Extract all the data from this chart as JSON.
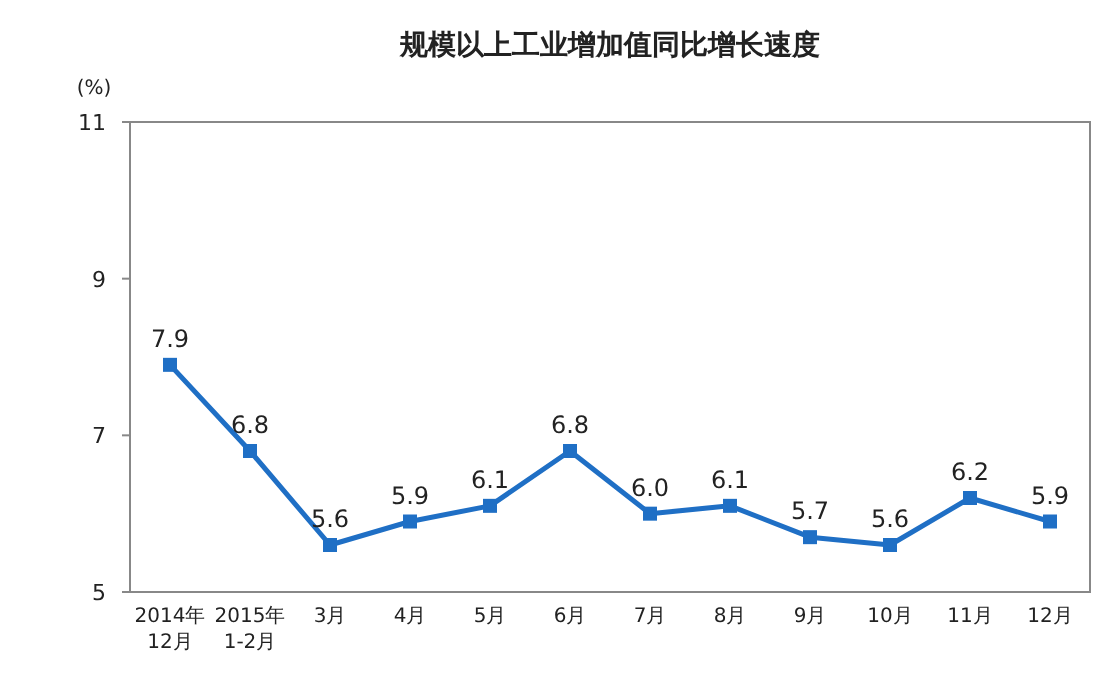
{
  "chart_data": {
    "type": "line",
    "title": "规模以上工业增加值同比增长速度",
    "ylabel": "(%)",
    "categories": [
      "2014年\n12月",
      "2015年\n1-2月",
      "3月",
      "4月",
      "5月",
      "6月",
      "7月",
      "8月",
      "9月",
      "10月",
      "11月",
      "12月"
    ],
    "series": [
      {
        "color": "#1f6fc5",
        "values": [
          7.9,
          6.8,
          5.6,
          5.9,
          6.1,
          6.8,
          6.0,
          6.1,
          5.7,
          5.6,
          6.2,
          5.9
        ],
        "value_labels": [
          "7.9",
          "6.8",
          "5.6",
          "5.9",
          "6.1",
          "6.8",
          "6.0",
          "6.1",
          "5.7",
          "5.6",
          "6.2",
          "5.9"
        ]
      }
    ],
    "ylim": [
      5,
      11
    ],
    "yticks": [
      5,
      7,
      9,
      11
    ],
    "marker": "square",
    "line_style": "solid",
    "grid": false
  }
}
